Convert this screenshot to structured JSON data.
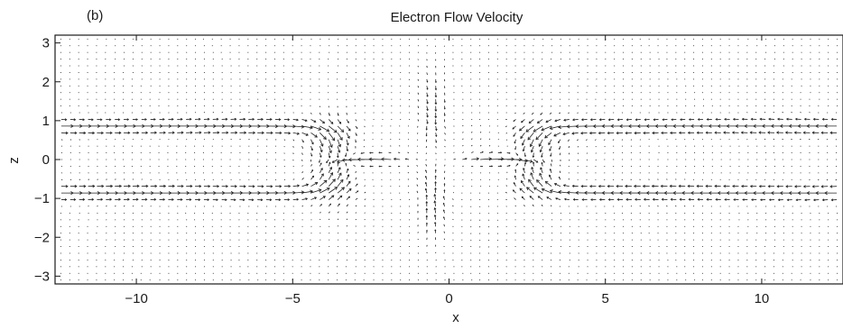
{
  "panel_label": "(b)",
  "chart_data": {
    "type": "quiver",
    "title": "Electron Flow Velocity",
    "xlabel": "x",
    "ylabel": "z",
    "xlim": [
      -12.6,
      12.6
    ],
    "ylim": [
      -3.2,
      3.2
    ],
    "x_ticks": [
      -10,
      -5,
      0,
      5,
      10
    ],
    "x_tick_labels": [
      "−10",
      "−5",
      "0",
      "5",
      "10"
    ],
    "y_ticks": [
      -3,
      -2,
      -1,
      0,
      1,
      2,
      3
    ],
    "y_tick_labels": [
      "−3",
      "−2",
      "−1",
      "0",
      "1",
      "2",
      "3"
    ],
    "grid": false,
    "legend": "none",
    "field": {
      "x_range": [
        -12.4,
        12.4
      ],
      "z_range": [
        -3.1,
        3.1
      ],
      "nx": 88,
      "nz": 37,
      "description_of_values": "Flow pattern: electron jets directed toward the x-point (x≈-0.5, z=0) along z≈±0.85 from both sides, turning toward the midplane near |x|≈3–4, and outflow jets along z=0 directed away from the x-point (peak near |x|≈2)."
    },
    "vector_color": "#222222"
  }
}
